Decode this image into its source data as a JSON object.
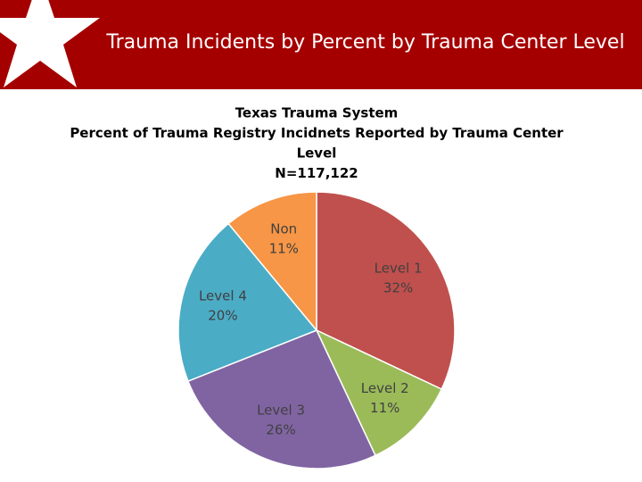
{
  "header": {
    "title": "Trauma Incidents by Percent by Trauma Center Level"
  },
  "chart_data": {
    "type": "pie",
    "title": [
      "Texas Trauma System",
      "Percent of Trauma Registry Incidnets Reported by Trauma Center",
      "Level",
      "N=117,122"
    ],
    "categories": [
      "Level 1",
      "Level 2",
      "Level 3",
      "Level 4",
      "Non"
    ],
    "values": [
      32,
      11,
      26,
      20,
      11
    ],
    "value_labels": [
      "32%",
      "11%",
      "26%",
      "20%",
      "11%"
    ],
    "colors": [
      "#c0504d",
      "#9bbb59",
      "#8064a2",
      "#4bacc6",
      "#f79646"
    ]
  }
}
